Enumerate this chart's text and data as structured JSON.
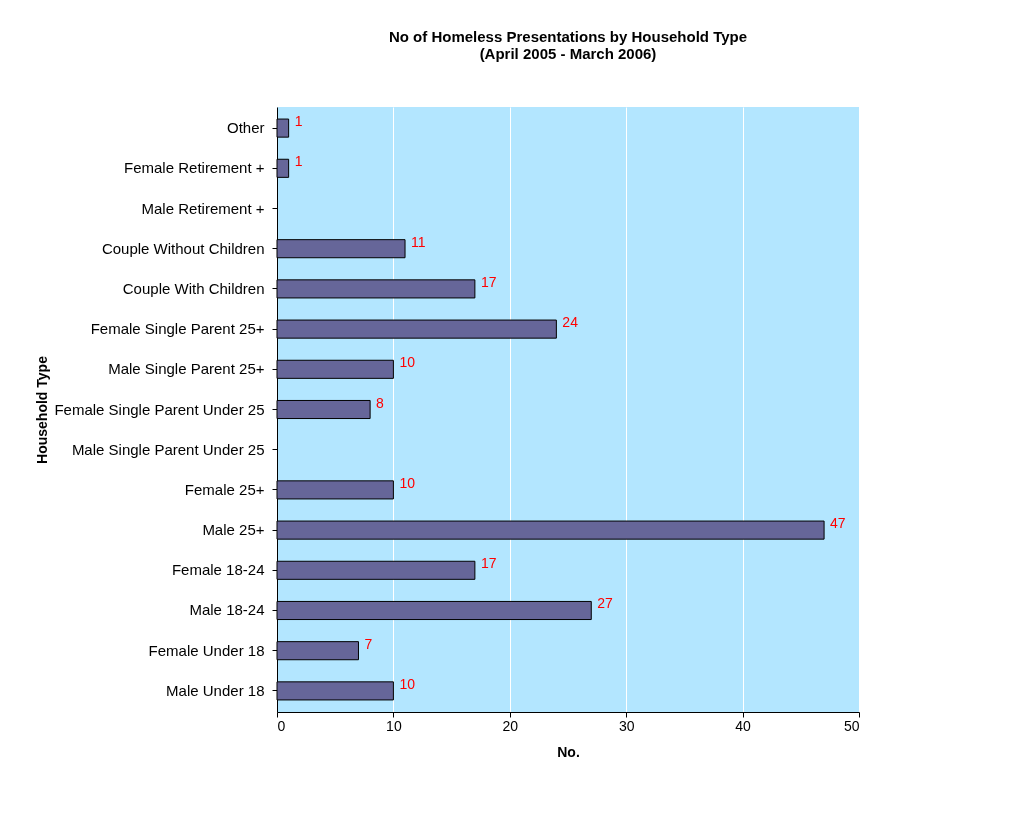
{
  "chart_data": {
    "type": "bar",
    "orientation": "horizontal",
    "title": "No of Homeless Presentations by Household Type",
    "subtitle": "(April 2005 - March 2006)",
    "xlabel": "No.",
    "ylabel": "Household Type",
    "categories": [
      "Other",
      "Female Retirement +",
      "Male Retirement +",
      "Couple Without Children",
      "Couple With Children",
      "Female Single Parent 25+",
      "Male Single Parent 25+",
      "Female Single Parent Under 25",
      "Male Single Parent Under 25",
      "Female 25+",
      "Male 25+",
      "Female 18-24",
      "Male 18-24",
      "Female Under 18",
      "Male Under 18"
    ],
    "values": [
      1,
      1,
      null,
      11,
      17,
      24,
      10,
      8,
      null,
      10,
      47,
      17,
      27,
      7,
      10
    ],
    "value_labels": [
      "1",
      "1",
      null,
      "11",
      "17",
      "24",
      "10",
      "8",
      null,
      "10",
      "47",
      "17",
      "27",
      "7",
      "10"
    ],
    "color": "#666699",
    "xlim": [
      0,
      50
    ],
    "xticks": [
      0,
      10,
      20,
      30,
      40,
      50
    ],
    "grid": "x"
  }
}
